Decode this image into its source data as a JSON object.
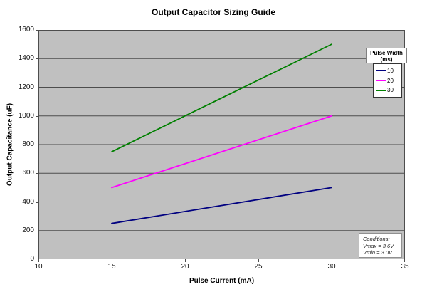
{
  "chart_data": {
    "type": "line",
    "title": "Output Capacitor Sizing Guide",
    "xlabel": "Pulse Current (mA)",
    "ylabel": "Output Capacitance (uF)",
    "xlim": [
      10,
      35
    ],
    "ylim": [
      0,
      1600
    ],
    "xticks": [
      10,
      15,
      20,
      25,
      30,
      35
    ],
    "yticks": [
      0,
      200,
      400,
      600,
      800,
      1000,
      1200,
      1400,
      1600
    ],
    "grid": "horizontal-major-only",
    "plot_background": "#c0c0c0",
    "gridline_color": "#4d4d4d",
    "legend": {
      "position": "upper-right",
      "title": [
        "Pulse Width",
        "(ms)"
      ]
    },
    "x": [
      15,
      30
    ],
    "series": [
      {
        "name": "10",
        "color": "#000080",
        "values": [
          250,
          500
        ]
      },
      {
        "name": "20",
        "color": "#ff00ff",
        "values": [
          500,
          1000
        ]
      },
      {
        "name": "30",
        "color": "#008000",
        "values": [
          750,
          1500
        ]
      }
    ],
    "annotations": [
      {
        "position": "lower-right",
        "text": [
          "Conditions:",
          "Vmax = 3.6V",
          "Vmin = 3.0V"
        ]
      }
    ]
  }
}
